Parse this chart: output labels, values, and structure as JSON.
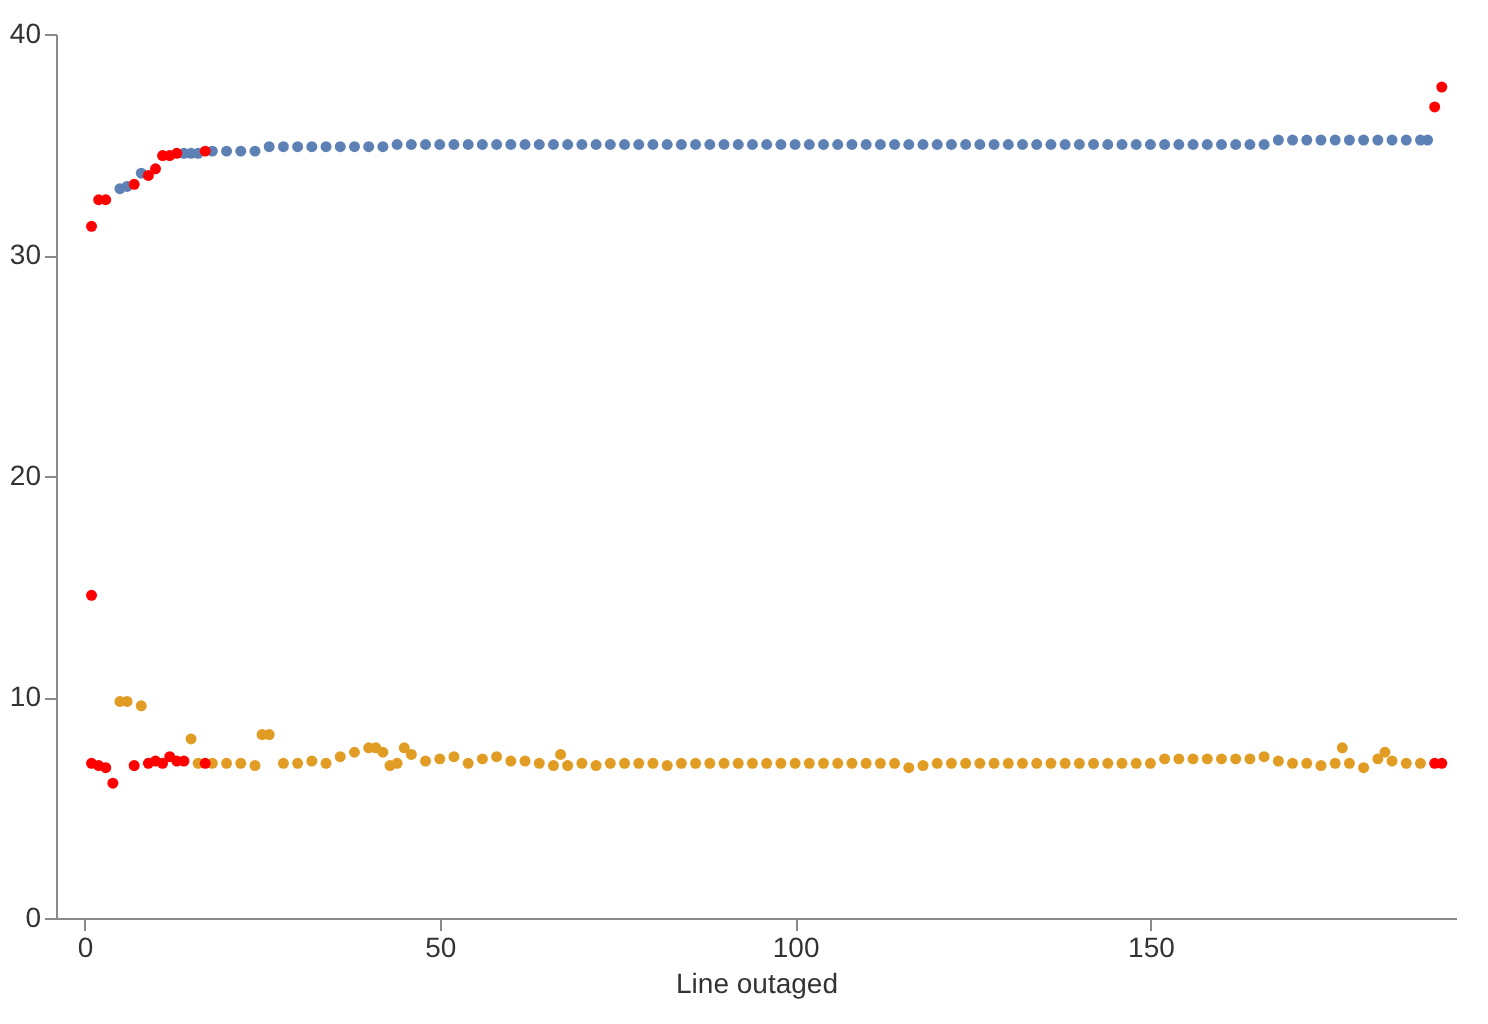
{
  "chart_data": {
    "type": "scatter",
    "xlabel": "Line outaged",
    "xlim": [
      -4,
      193
    ],
    "ylim": [
      0,
      40
    ],
    "xticks": [
      0,
      50,
      100,
      150
    ],
    "yticks": [
      0,
      10,
      20,
      30,
      40
    ],
    "marker": "circle",
    "series": [
      {
        "color": "#5e81b5",
        "x": [
          5,
          6,
          8,
          14,
          15,
          16,
          18,
          20,
          22,
          24,
          26,
          28,
          30,
          32,
          34,
          36,
          38,
          40,
          42,
          44,
          46,
          48,
          50,
          52,
          54,
          56,
          58,
          60,
          62,
          64,
          66,
          68,
          70,
          72,
          74,
          76,
          78,
          80,
          82,
          84,
          86,
          88,
          90,
          92,
          94,
          96,
          98,
          100,
          102,
          104,
          106,
          108,
          110,
          112,
          114,
          116,
          118,
          120,
          122,
          124,
          126,
          128,
          130,
          132,
          134,
          136,
          138,
          140,
          142,
          144,
          146,
          148,
          150,
          152,
          154,
          156,
          158,
          160,
          162,
          164,
          166,
          168,
          170,
          172,
          174,
          176,
          178,
          180,
          182,
          184,
          186,
          188,
          189
        ],
        "values": [
          33.0,
          33.1,
          33.7,
          34.6,
          34.6,
          34.6,
          34.7,
          34.7,
          34.7,
          34.7,
          34.9,
          34.9,
          34.9,
          34.9,
          34.9,
          34.9,
          34.9,
          34.9,
          34.9,
          35.0,
          35.0,
          35.0,
          35.0,
          35.0,
          35.0,
          35.0,
          35.0,
          35.0,
          35.0,
          35.0,
          35.0,
          35.0,
          35.0,
          35.0,
          35.0,
          35.0,
          35.0,
          35.0,
          35.0,
          35.0,
          35.0,
          35.0,
          35.0,
          35.0,
          35.0,
          35.0,
          35.0,
          35.0,
          35.0,
          35.0,
          35.0,
          35.0,
          35.0,
          35.0,
          35.0,
          35.0,
          35.0,
          35.0,
          35.0,
          35.0,
          35.0,
          35.0,
          35.0,
          35.0,
          35.0,
          35.0,
          35.0,
          35.0,
          35.0,
          35.0,
          35.0,
          35.0,
          35.0,
          35.0,
          35.0,
          35.0,
          35.0,
          35.0,
          35.0,
          35.0,
          35.0,
          35.2,
          35.2,
          35.2,
          35.2,
          35.2,
          35.2,
          35.2,
          35.2,
          35.2,
          35.2,
          35.2,
          35.2
        ]
      },
      {
        "color": "#e19c24",
        "x": [
          5,
          6,
          8,
          15,
          16,
          18,
          20,
          22,
          24,
          25,
          26,
          28,
          30,
          32,
          34,
          36,
          38,
          40,
          41,
          42,
          43,
          44,
          45,
          46,
          48,
          50,
          52,
          54,
          56,
          58,
          60,
          62,
          64,
          66,
          67,
          68,
          70,
          72,
          74,
          76,
          78,
          80,
          82,
          84,
          86,
          88,
          90,
          92,
          94,
          96,
          98,
          100,
          102,
          104,
          106,
          108,
          110,
          112,
          114,
          116,
          118,
          120,
          122,
          124,
          126,
          128,
          130,
          132,
          134,
          136,
          138,
          140,
          142,
          144,
          146,
          148,
          150,
          152,
          154,
          156,
          158,
          160,
          162,
          164,
          166,
          168,
          170,
          172,
          174,
          176,
          177,
          178,
          180,
          182,
          183,
          184,
          186,
          188
        ],
        "values": [
          9.8,
          9.8,
          9.6,
          8.1,
          7.0,
          7.0,
          7.0,
          7.0,
          6.9,
          8.3,
          8.3,
          7.0,
          7.0,
          7.1,
          7.0,
          7.3,
          7.5,
          7.7,
          7.7,
          7.5,
          6.9,
          7.0,
          7.7,
          7.4,
          7.1,
          7.2,
          7.3,
          7.0,
          7.2,
          7.3,
          7.1,
          7.1,
          7.0,
          6.9,
          7.4,
          6.9,
          7.0,
          6.9,
          7.0,
          7.0,
          7.0,
          7.0,
          6.9,
          7.0,
          7.0,
          7.0,
          7.0,
          7.0,
          7.0,
          7.0,
          7.0,
          7.0,
          7.0,
          7.0,
          7.0,
          7.0,
          7.0,
          7.0,
          7.0,
          6.8,
          6.9,
          7.0,
          7.0,
          7.0,
          7.0,
          7.0,
          7.0,
          7.0,
          7.0,
          7.0,
          7.0,
          7.0,
          7.0,
          7.0,
          7.0,
          7.0,
          7.0,
          7.2,
          7.2,
          7.2,
          7.2,
          7.2,
          7.2,
          7.2,
          7.3,
          7.1,
          7.0,
          7.0,
          6.9,
          7.0,
          7.7,
          7.0,
          6.8,
          7.2,
          7.5,
          7.1,
          7.0,
          7.0
        ]
      },
      {
        "color": "#ff0000",
        "x": [
          1,
          2,
          3,
          7,
          9,
          10,
          11,
          12,
          13,
          17,
          190,
          191,
          1,
          1,
          2,
          3,
          4,
          7,
          9,
          10,
          11,
          12,
          13,
          14,
          17,
          190,
          191
        ],
        "values": [
          31.3,
          32.5,
          32.5,
          33.2,
          33.6,
          33.9,
          34.5,
          34.5,
          34.6,
          34.7,
          36.7,
          37.6,
          14.6,
          7.0,
          6.9,
          6.8,
          6.1,
          6.9,
          7.0,
          7.1,
          7.0,
          7.3,
          7.1,
          7.1,
          7.0,
          7.0,
          7.0
        ]
      }
    ]
  }
}
